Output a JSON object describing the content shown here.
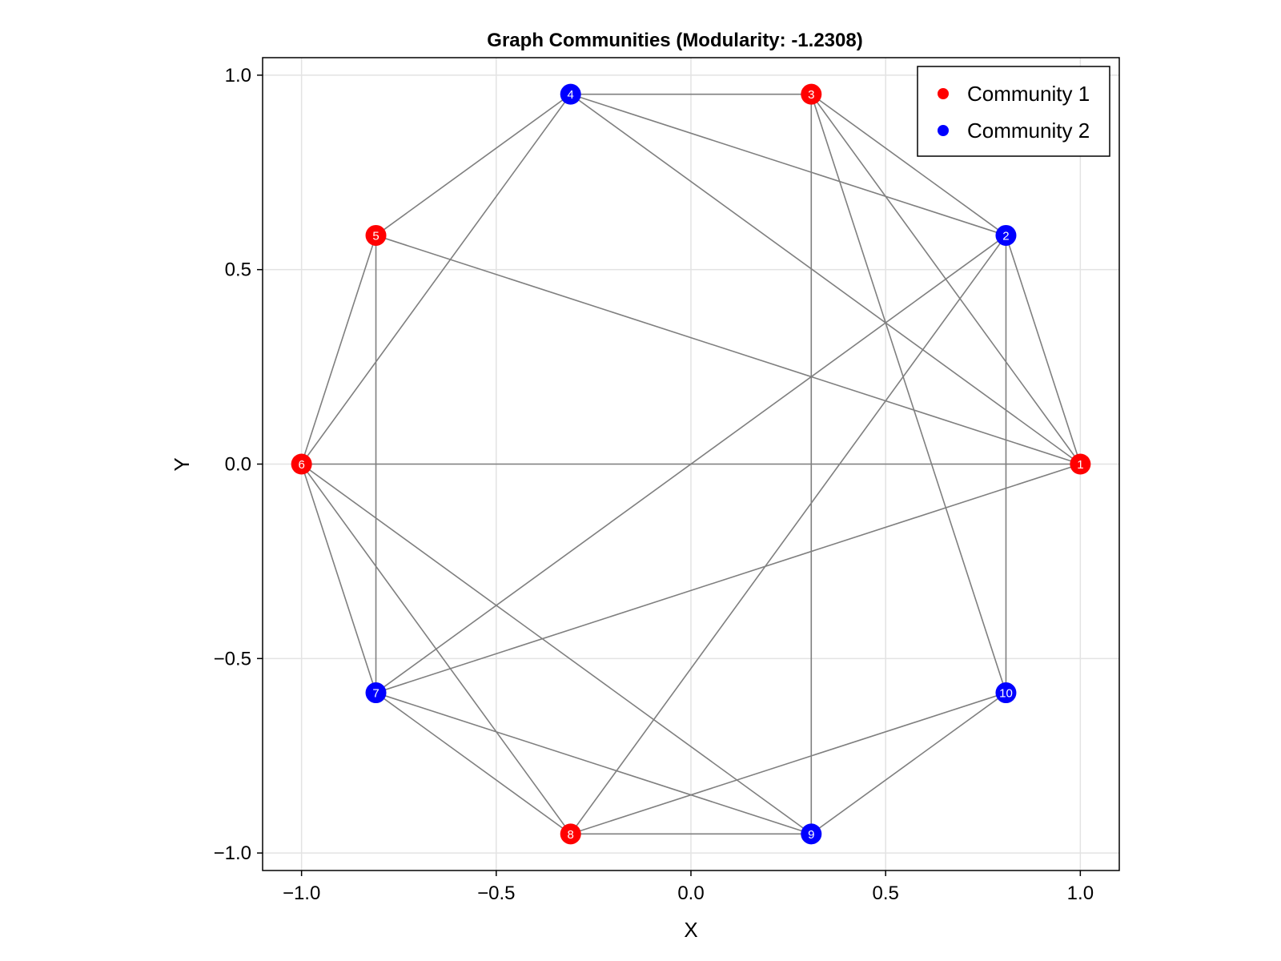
{
  "chart_data": {
    "type": "scatter",
    "title": "Graph Communities (Modularity: -1.2308)",
    "xlabel": "X",
    "ylabel": "Y",
    "xlim": [
      -1.1,
      1.1
    ],
    "ylim": [
      -1.045,
      1.045
    ],
    "xticks": [
      -1.0,
      -0.5,
      0.0,
      0.5,
      1.0
    ],
    "yticks": [
      -1.0,
      -0.5,
      0.0,
      0.5,
      1.0
    ],
    "xtick_labels": [
      "−1.0",
      "−0.5",
      "0.0",
      "0.5",
      "1.0"
    ],
    "ytick_labels": [
      "−1.0",
      "−0.5",
      "0.0",
      "0.5",
      "1.0"
    ],
    "grid": true,
    "legend_position": "top-right",
    "communities": [
      {
        "name": "Community 1",
        "color": "#ff0000"
      },
      {
        "name": "Community 2",
        "color": "#0000ff"
      }
    ],
    "nodes": [
      {
        "id": "1",
        "x": 1.0,
        "y": 0.0,
        "community": 0
      },
      {
        "id": "2",
        "x": 0.809,
        "y": 0.588,
        "community": 1
      },
      {
        "id": "3",
        "x": 0.309,
        "y": 0.951,
        "community": 0
      },
      {
        "id": "4",
        "x": -0.309,
        "y": 0.951,
        "community": 1
      },
      {
        "id": "5",
        "x": -0.809,
        "y": 0.588,
        "community": 0
      },
      {
        "id": "6",
        "x": -1.0,
        "y": 0.0,
        "community": 0
      },
      {
        "id": "7",
        "x": -0.809,
        "y": -0.588,
        "community": 1
      },
      {
        "id": "8",
        "x": -0.309,
        "y": -0.951,
        "community": 0
      },
      {
        "id": "9",
        "x": 0.309,
        "y": -0.951,
        "community": 1
      },
      {
        "id": "10",
        "x": 0.809,
        "y": -0.588,
        "community": 1
      }
    ],
    "edges": [
      [
        "1",
        "2"
      ],
      [
        "1",
        "3"
      ],
      [
        "1",
        "4"
      ],
      [
        "1",
        "5"
      ],
      [
        "1",
        "6"
      ],
      [
        "1",
        "7"
      ],
      [
        "2",
        "3"
      ],
      [
        "2",
        "4"
      ],
      [
        "2",
        "7"
      ],
      [
        "2",
        "8"
      ],
      [
        "2",
        "10"
      ],
      [
        "3",
        "4"
      ],
      [
        "3",
        "9"
      ],
      [
        "3",
        "10"
      ],
      [
        "4",
        "5"
      ],
      [
        "4",
        "6"
      ],
      [
        "5",
        "6"
      ],
      [
        "5",
        "7"
      ],
      [
        "6",
        "7"
      ],
      [
        "6",
        "8"
      ],
      [
        "6",
        "9"
      ],
      [
        "7",
        "8"
      ],
      [
        "7",
        "9"
      ],
      [
        "8",
        "9"
      ],
      [
        "8",
        "10"
      ],
      [
        "9",
        "10"
      ]
    ],
    "edge_color": "#7f7f7f"
  }
}
